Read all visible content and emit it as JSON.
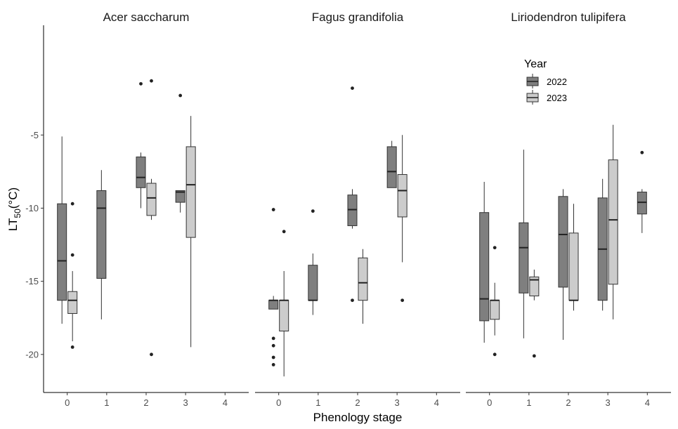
{
  "chart_data": {
    "type": "box",
    "xlabel": "Phenology stage",
    "ylabel_main": "LT",
    "ylabel_sub": "50",
    "ylabel_suffix": "(°C)",
    "ylim": [
      -22.6,
      2.5
    ],
    "y_ticks": [
      -20,
      -15,
      -10,
      -5
    ],
    "x_ticks": [
      0,
      1,
      2,
      3,
      4
    ],
    "legend": {
      "title": "Year",
      "position": "top-right",
      "items": [
        {
          "label": "2022",
          "color": "#7f7f7f"
        },
        {
          "label": "2023",
          "color": "#cccccc"
        }
      ]
    },
    "panels": [
      {
        "title": "Acer saccharum",
        "boxes": [
          {
            "stage": 0,
            "year": "2022",
            "whisker_low": -17.9,
            "q1": -16.3,
            "median": -13.6,
            "q3": -9.7,
            "whisker_high": -5.1,
            "outliers": []
          },
          {
            "stage": 0,
            "year": "2023",
            "whisker_low": -19.1,
            "q1": -17.2,
            "median": -16.3,
            "q3": -15.7,
            "whisker_high": -14.3,
            "outliers": [
              -9.7,
              -13.2,
              -19.5
            ]
          },
          {
            "stage": 1,
            "year": "2022",
            "whisker_low": -17.6,
            "q1": -14.8,
            "median": -10.0,
            "q3": -8.8,
            "whisker_high": -7.4,
            "outliers": []
          },
          {
            "stage": 2,
            "year": "2022",
            "whisker_low": -10.0,
            "q1": -8.6,
            "median": -7.9,
            "q3": -6.5,
            "whisker_high": -6.2,
            "outliers": [
              -1.5
            ]
          },
          {
            "stage": 2,
            "year": "2023",
            "whisker_low": -10.8,
            "q1": -10.5,
            "median": -9.3,
            "q3": -8.3,
            "whisker_high": -8.0,
            "outliers": [
              -1.3,
              -20.0
            ]
          },
          {
            "stage": 3,
            "year": "2022",
            "whisker_low": -10.3,
            "q1": -9.6,
            "median": -8.9,
            "q3": -8.8,
            "whisker_high": -8.8,
            "outliers": [
              -2.3
            ]
          },
          {
            "stage": 3,
            "year": "2023",
            "whisker_low": -19.5,
            "q1": -12.0,
            "median": -8.4,
            "q3": -5.8,
            "whisker_high": -3.7,
            "outliers": []
          }
        ]
      },
      {
        "title": "Fagus grandifolia",
        "boxes": [
          {
            "stage": 0,
            "year": "2022",
            "whisker_low": -16.9,
            "q1": -16.9,
            "median": -16.3,
            "q3": -16.3,
            "whisker_high": -16.0,
            "outliers": [
              -10.1,
              -18.9,
              -19.4,
              -20.2,
              -20.7
            ]
          },
          {
            "stage": 0,
            "year": "2023",
            "whisker_low": -21.5,
            "q1": -18.4,
            "median": -16.3,
            "q3": -16.3,
            "whisker_high": -14.3,
            "outliers": [
              -11.6
            ]
          },
          {
            "stage": 1,
            "year": "2022",
            "whisker_low": -17.3,
            "q1": -16.3,
            "median": -16.3,
            "q3": -13.9,
            "whisker_high": -13.1,
            "outliers": [
              -10.2
            ]
          },
          {
            "stage": 2,
            "year": "2022",
            "whisker_low": -11.4,
            "q1": -11.2,
            "median": -10.1,
            "q3": -9.1,
            "whisker_high": -8.7,
            "outliers": [
              -1.8,
              -16.3
            ]
          },
          {
            "stage": 2,
            "year": "2023",
            "whisker_low": -17.9,
            "q1": -16.3,
            "median": -15.1,
            "q3": -13.4,
            "whisker_high": -12.8,
            "outliers": []
          },
          {
            "stage": 3,
            "year": "2022",
            "whisker_low": -8.6,
            "q1": -8.6,
            "median": -7.5,
            "q3": -5.8,
            "whisker_high": -5.4,
            "outliers": []
          },
          {
            "stage": 3,
            "year": "2023",
            "whisker_low": -13.7,
            "q1": -10.6,
            "median": -8.8,
            "q3": -7.7,
            "whisker_high": -5.0,
            "outliers": [
              -16.3
            ]
          }
        ]
      },
      {
        "title": "Liriodendron tulipifera",
        "boxes": [
          {
            "stage": 0,
            "year": "2022",
            "whisker_low": -19.2,
            "q1": -17.7,
            "median": -16.2,
            "q3": -10.3,
            "whisker_high": -8.2,
            "outliers": []
          },
          {
            "stage": 0,
            "year": "2023",
            "whisker_low": -18.7,
            "q1": -17.6,
            "median": -16.3,
            "q3": -16.3,
            "whisker_high": -15.1,
            "outliers": [
              -12.7,
              -20.0
            ]
          },
          {
            "stage": 1,
            "year": "2022",
            "whisker_low": -18.9,
            "q1": -15.8,
            "median": -12.7,
            "q3": -11.0,
            "whisker_high": -6.0,
            "outliers": []
          },
          {
            "stage": 1,
            "year": "2023",
            "whisker_low": -16.3,
            "q1": -16.0,
            "median": -14.9,
            "q3": -14.7,
            "whisker_high": -14.2,
            "outliers": [
              -20.1
            ]
          },
          {
            "stage": 2,
            "year": "2022",
            "whisker_low": -19.0,
            "q1": -15.4,
            "median": -11.8,
            "q3": -9.2,
            "whisker_high": -8.7,
            "outliers": []
          },
          {
            "stage": 2,
            "year": "2023",
            "whisker_low": -17.0,
            "q1": -16.3,
            "median": -16.3,
            "q3": -11.7,
            "whisker_high": -9.7,
            "outliers": []
          },
          {
            "stage": 3,
            "year": "2022",
            "whisker_low": -17.0,
            "q1": -16.3,
            "median": -12.8,
            "q3": -9.3,
            "whisker_high": -8.0,
            "outliers": []
          },
          {
            "stage": 3,
            "year": "2023",
            "whisker_low": -17.6,
            "q1": -15.2,
            "median": -10.8,
            "q3": -6.7,
            "whisker_high": -4.3,
            "outliers": []
          },
          {
            "stage": 4,
            "year": "2022",
            "whisker_low": -11.7,
            "q1": -10.4,
            "median": -9.6,
            "q3": -8.9,
            "whisker_high": -8.7,
            "outliers": [
              -6.2
            ]
          }
        ]
      }
    ]
  }
}
